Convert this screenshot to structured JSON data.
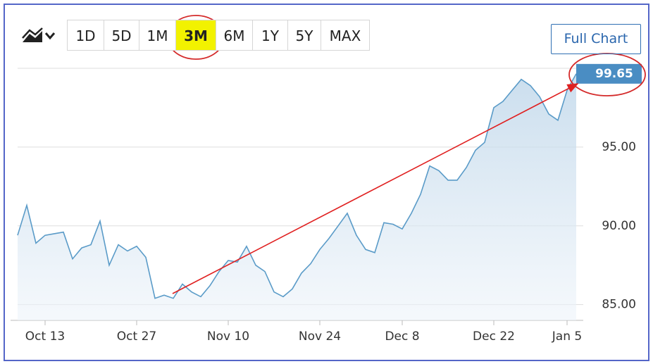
{
  "toolbar": {
    "ranges": [
      "1D",
      "5D",
      "1M",
      "3M",
      "6M",
      "1Y",
      "5Y",
      "MAX"
    ],
    "active": "3M",
    "full_chart": "Full Chart"
  },
  "chart_data": {
    "type": "area",
    "categories": [
      null,
      null,
      null,
      "Oct 13",
      null,
      null,
      null,
      null,
      null,
      null,
      null,
      null,
      null,
      "Oct 27",
      null,
      null,
      null,
      null,
      null,
      null,
      null,
      null,
      null,
      "Nov 10",
      null,
      null,
      null,
      null,
      null,
      null,
      null,
      null,
      null,
      "Nov 24",
      null,
      null,
      null,
      null,
      null,
      null,
      null,
      null,
      "Dec 8",
      null,
      null,
      null,
      null,
      null,
      null,
      null,
      null,
      null,
      "Dec 22",
      null,
      null,
      null,
      null,
      null,
      null,
      null,
      "Jan 5",
      null
    ],
    "values": [
      89.4,
      91.3,
      88.9,
      89.4,
      89.5,
      89.6,
      87.9,
      88.6,
      88.8,
      90.3,
      87.5,
      88.8,
      88.4,
      88.7,
      88.0,
      85.4,
      85.6,
      85.4,
      86.3,
      85.8,
      85.5,
      86.2,
      87.1,
      87.8,
      87.7,
      88.7,
      87.5,
      87.1,
      85.8,
      85.5,
      86.0,
      87.0,
      87.6,
      88.5,
      89.2,
      90.0,
      90.8,
      89.4,
      88.5,
      88.3,
      90.2,
      90.1,
      89.8,
      90.8,
      92.0,
      93.8,
      93.5,
      92.9,
      92.9,
      93.7,
      94.8,
      95.3,
      97.5,
      97.9,
      98.6,
      99.3,
      98.9,
      98.2,
      97.1,
      96.7,
      98.6,
      99.65
    ],
    "color": "#5a9bc8",
    "ylim": [
      84,
      100
    ],
    "yticks": [
      {
        "value": 85,
        "label": "85.00"
      },
      {
        "value": 90,
        "label": "90.00"
      },
      {
        "value": 95,
        "label": "95.00"
      }
    ],
    "grid": true
  }
}
